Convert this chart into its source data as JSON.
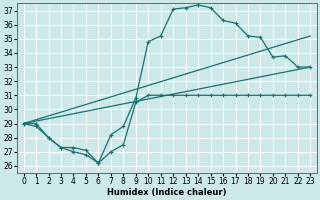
{
  "xlabel": "Humidex (Indice chaleur)",
  "bg_color": "#cce8e8",
  "grid_color": "#ffffff",
  "line_color": "#1a7070",
  "xlim": [
    -0.5,
    23.5
  ],
  "ylim": [
    25.5,
    37.5
  ],
  "xticks": [
    0,
    1,
    2,
    3,
    4,
    5,
    6,
    7,
    8,
    9,
    10,
    11,
    12,
    13,
    14,
    15,
    16,
    17,
    18,
    19,
    20,
    21,
    22,
    23
  ],
  "yticks": [
    26,
    27,
    28,
    29,
    30,
    31,
    32,
    33,
    34,
    35,
    36,
    37
  ],
  "curve1_x": [
    0,
    1,
    2,
    3,
    4,
    5,
    6,
    7,
    8,
    9,
    10,
    11,
    12,
    13,
    14,
    15,
    16,
    17,
    18,
    19,
    20,
    21,
    22,
    23
  ],
  "curve1_y": [
    29,
    29,
    28,
    27.3,
    27,
    26.8,
    26.2,
    28.2,
    28.8,
    30.8,
    34.8,
    35.2,
    37.1,
    37.2,
    37.4,
    37.2,
    36.3,
    36.1,
    35.2,
    35.1,
    33.7,
    33.8,
    33.0,
    33.0
  ],
  "curve2_x": [
    0,
    1,
    2,
    3,
    4,
    5,
    6,
    7,
    8,
    9,
    10,
    11,
    12,
    13,
    14,
    15,
    16,
    17,
    18,
    19,
    20,
    21,
    22,
    23
  ],
  "curve2_y": [
    29.0,
    28.8,
    28.0,
    27.3,
    27.3,
    27.1,
    26.2,
    27.0,
    27.5,
    30.5,
    31.0,
    31.0,
    31.0,
    31.0,
    31.0,
    31.0,
    31.0,
    31.0,
    31.0,
    31.0,
    31.0,
    31.0,
    31.0,
    31.0
  ],
  "line3_x": [
    0,
    23
  ],
  "line3_y": [
    29.0,
    35.2
  ],
  "line4_x": [
    0,
    23
  ],
  "line4_y": [
    29.0,
    33.0
  ]
}
